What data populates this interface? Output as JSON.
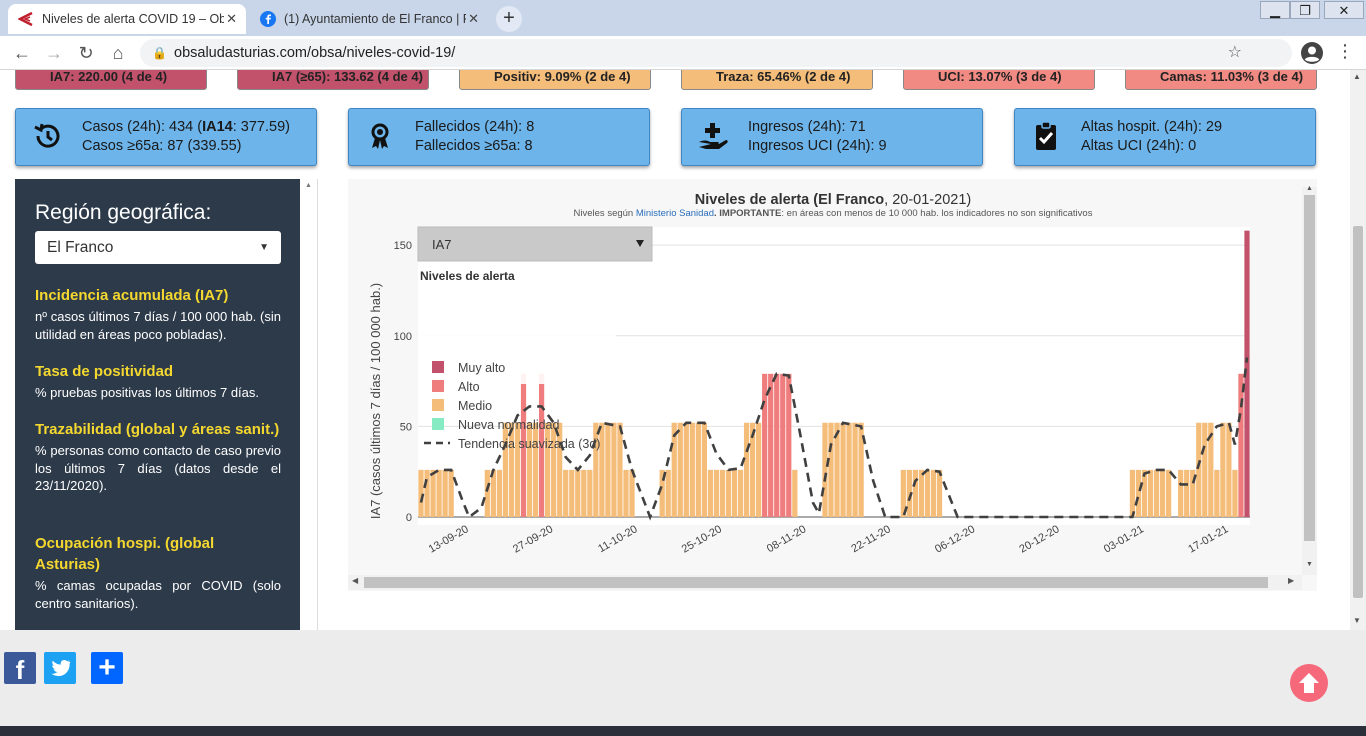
{
  "browser": {
    "tabs": [
      {
        "title": "Niveles de alerta COVID 19 – Ob",
        "active": true
      },
      {
        "title": "(1) Ayuntamiento de El Franco | F",
        "active": false
      }
    ],
    "url": "obsaludasturias.com/obsa/niveles-covid-19/",
    "window_controls": {
      "minimize": "▁",
      "restore": "❐",
      "close": "✕"
    }
  },
  "top_cards": [
    {
      "text": "IA7: 220.00 (4 de 4)",
      "color": "#c2526b"
    },
    {
      "text": "IA7 (≥65): 133.62 (4 de 4)",
      "color": "#c2526b"
    },
    {
      "text": "Positiv: 9.09% (2 de 4)",
      "color": "#f5bd7a"
    },
    {
      "text": "Traza: 65.46% (2 de 4)",
      "color": "#f5bd7a"
    },
    {
      "text": "UCI: 13.07% (3 de 4)",
      "color": "#f28a84"
    },
    {
      "text": "Camas: 11.03% (3 de 4)",
      "color": "#f28a84"
    }
  ],
  "stat_cards": [
    {
      "icon": "history-icon",
      "line1_pre": "Casos (24h): 434 (",
      "line1_bold": "IA14",
      "line1_post": ": 377.59)",
      "line2": "Casos ≥65a: 87 (339.55)"
    },
    {
      "icon": "ribbon-icon",
      "line1_pre": "Fallecidos (24h): 8",
      "line1_bold": "",
      "line1_post": "",
      "line2": "Fallecidos ≥65a: 8"
    },
    {
      "icon": "hand-plus-icon",
      "line1_pre": "Ingresos (24h): 71",
      "line1_bold": "",
      "line1_post": "",
      "line2": "Ingresos UCI (24h): 9"
    },
    {
      "icon": "clipboard-check-icon",
      "line1_pre": "Altas hospit. (24h): 29",
      "line1_bold": "",
      "line1_post": "",
      "line2": "Altas UCI (24h): 0"
    }
  ],
  "sidebar": {
    "heading": "Región geográfica:",
    "selected_region": "El Franco",
    "items": [
      {
        "title": "Incidencia acumulada (IA7)",
        "text": "nº casos últimos 7 días / 100 000 hab. (sin utilidad en áreas poco pobladas)."
      },
      {
        "title": "Tasa de positividad",
        "text": "% pruebas positivas los últimos 7 días."
      },
      {
        "title": "Trazabilidad (global y áreas sanit.)",
        "text": "% personas como contacto de caso previo los últimos 7 días (datos desde el 23/11/2020)."
      },
      {
        "title": "Ocupación hospi. (global Asturias)",
        "text": "% camas ocupadas por COVID (solo centro sanitarios)."
      }
    ]
  },
  "chart": {
    "title_bold": "Niveles de alerta (El Franco",
    "title_rest": ", 20-01-2021)",
    "subtitle_pre": "Niveles según ",
    "subtitle_link": "Ministerio Sanidad",
    "subtitle_bold": ". IMPORTANTE",
    "subtitle_post": ": en áreas con menos de 10 000 hab. los indicadores no son significativos",
    "dropdown": "IA7",
    "legend_title": "Niveles de alerta",
    "colors": {
      "Muy alto": "#c2526b",
      "Alto": "#f07d7d",
      "Medio": "#f5bd7a",
      "Nueva normalidad": "#86ebc2",
      "grid": "#e2e2e2",
      "trend": "#404040"
    }
  },
  "chart_data": {
    "type": "bar",
    "title": "Niveles de alerta (El Franco, 20-01-2021)",
    "ylabel": "IA7 (casos últimos 7 días / 100 000 hab.)",
    "ylim": [
      0,
      160
    ],
    "yticks": [
      0,
      50,
      100,
      150
    ],
    "xticks": [
      "13-09-20",
      "27-09-20",
      "11-10-20",
      "25-10-20",
      "08-11-20",
      "22-11-20",
      "06-12-20",
      "20-12-20",
      "03-01-21",
      "17-01-21"
    ],
    "x_start": "2020-09-05",
    "x_end": "2021-01-20",
    "legend": [
      "Muy alto",
      "Alto",
      "Medio",
      "Nueva normalidad",
      "Tendencia suavizada (3d)"
    ],
    "series": [
      {
        "name": "IA7",
        "segments": [
          {
            "from": "2020-09-05",
            "to": "2020-09-10",
            "value": 26,
            "level": "Medio"
          },
          {
            "from": "2020-09-16",
            "to": "2020-09-18",
            "value": 26,
            "level": "Medio"
          },
          {
            "from": "2020-09-19",
            "to": "2020-09-21",
            "value": 52,
            "level": "Medio"
          },
          {
            "from": "2020-09-22",
            "to": "2020-09-22",
            "value": 79,
            "level": "Alto"
          },
          {
            "from": "2020-09-23",
            "to": "2020-09-24",
            "value": 52,
            "level": "Medio"
          },
          {
            "from": "2020-09-25",
            "to": "2020-09-25",
            "value": 79,
            "level": "Alto"
          },
          {
            "from": "2020-09-26",
            "to": "2020-09-28",
            "value": 52,
            "level": "Medio"
          },
          {
            "from": "2020-09-29",
            "to": "2020-10-01",
            "value": 26,
            "level": "Medio"
          },
          {
            "from": "2020-10-02",
            "to": "2020-10-03",
            "value": 26,
            "level": "Medio"
          },
          {
            "from": "2020-10-04",
            "to": "2020-10-08",
            "value": 52,
            "level": "Medio"
          },
          {
            "from": "2020-10-09",
            "to": "2020-10-10",
            "value": 26,
            "level": "Medio"
          },
          {
            "from": "2020-10-15",
            "to": "2020-10-16",
            "value": 26,
            "level": "Medio"
          },
          {
            "from": "2020-10-17",
            "to": "2020-10-22",
            "value": 52,
            "level": "Medio"
          },
          {
            "from": "2020-10-23",
            "to": "2020-10-28",
            "value": 26,
            "level": "Medio"
          },
          {
            "from": "2020-10-29",
            "to": "2020-10-31",
            "value": 52,
            "level": "Medio"
          },
          {
            "from": "2020-11-01",
            "to": "2020-11-05",
            "value": 79,
            "level": "Alto"
          },
          {
            "from": "2020-11-06",
            "to": "2020-11-06",
            "value": 26,
            "level": "Medio"
          },
          {
            "from": "2020-11-11",
            "to": "2020-11-17",
            "value": 52,
            "level": "Medio"
          },
          {
            "from": "2020-11-24",
            "to": "2020-11-30",
            "value": 26,
            "level": "Medio"
          },
          {
            "from": "2021-01-01",
            "to": "2021-01-07",
            "value": 26,
            "level": "Medio"
          },
          {
            "from": "2021-01-09",
            "to": "2021-01-11",
            "value": 26,
            "level": "Medio"
          },
          {
            "from": "2021-01-12",
            "to": "2021-01-14",
            "value": 52,
            "level": "Medio"
          },
          {
            "from": "2021-01-15",
            "to": "2021-01-15",
            "value": 26,
            "level": "Medio"
          },
          {
            "from": "2021-01-16",
            "to": "2021-01-17",
            "value": 52,
            "level": "Medio"
          },
          {
            "from": "2021-01-18",
            "to": "2021-01-18",
            "value": 26,
            "level": "Medio"
          },
          {
            "from": "2021-01-19",
            "to": "2021-01-19",
            "value": 79,
            "level": "Alto"
          },
          {
            "from": "2021-01-20",
            "to": "2021-01-20",
            "value": 158,
            "level": "Muy alto"
          }
        ]
      },
      {
        "name": "Tendencia suavizada (3d)",
        "points": [
          [
            "2020-09-05",
            8
          ],
          [
            "2020-09-06",
            22
          ],
          [
            "2020-09-08",
            26
          ],
          [
            "2020-09-10",
            26
          ],
          [
            "2020-09-12",
            8
          ],
          [
            "2020-09-13",
            0
          ],
          [
            "2020-09-15",
            5
          ],
          [
            "2020-09-17",
            26
          ],
          [
            "2020-09-19",
            40
          ],
          [
            "2020-09-21",
            56
          ],
          [
            "2020-09-23",
            61
          ],
          [
            "2020-09-25",
            61
          ],
          [
            "2020-09-27",
            52
          ],
          [
            "2020-09-29",
            33
          ],
          [
            "2020-10-01",
            26
          ],
          [
            "2020-10-03",
            34
          ],
          [
            "2020-10-05",
            52
          ],
          [
            "2020-10-08",
            50
          ],
          [
            "2020-10-10",
            26
          ],
          [
            "2020-10-13",
            0
          ],
          [
            "2020-10-15",
            18
          ],
          [
            "2020-10-17",
            45
          ],
          [
            "2020-10-19",
            52
          ],
          [
            "2020-10-22",
            52
          ],
          [
            "2020-10-24",
            35
          ],
          [
            "2020-10-26",
            26
          ],
          [
            "2020-10-28",
            27
          ],
          [
            "2020-10-30",
            45
          ],
          [
            "2020-11-01",
            65
          ],
          [
            "2020-11-03",
            79
          ],
          [
            "2020-11-05",
            78
          ],
          [
            "2020-11-07",
            44
          ],
          [
            "2020-11-09",
            8
          ],
          [
            "2020-11-10",
            2
          ],
          [
            "2020-11-12",
            40
          ],
          [
            "2020-11-14",
            52
          ],
          [
            "2020-11-17",
            50
          ],
          [
            "2020-11-19",
            20
          ],
          [
            "2020-11-21",
            0
          ],
          [
            "2020-11-24",
            0
          ],
          [
            "2020-11-26",
            20
          ],
          [
            "2020-11-28",
            26
          ],
          [
            "2020-11-30",
            25
          ],
          [
            "2020-12-03",
            0
          ],
          [
            "2021-01-01",
            0
          ],
          [
            "2021-01-03",
            24
          ],
          [
            "2021-01-05",
            26
          ],
          [
            "2021-01-07",
            26
          ],
          [
            "2021-01-09",
            18
          ],
          [
            "2021-01-11",
            18
          ],
          [
            "2021-01-13",
            40
          ],
          [
            "2021-01-15",
            50
          ],
          [
            "2021-01-17",
            52
          ],
          [
            "2021-01-18",
            40
          ],
          [
            "2021-01-19",
            60
          ],
          [
            "2021-01-20",
            88
          ]
        ]
      }
    ]
  },
  "share": {
    "facebook": "f",
    "twitter": "t",
    "more": "+"
  }
}
